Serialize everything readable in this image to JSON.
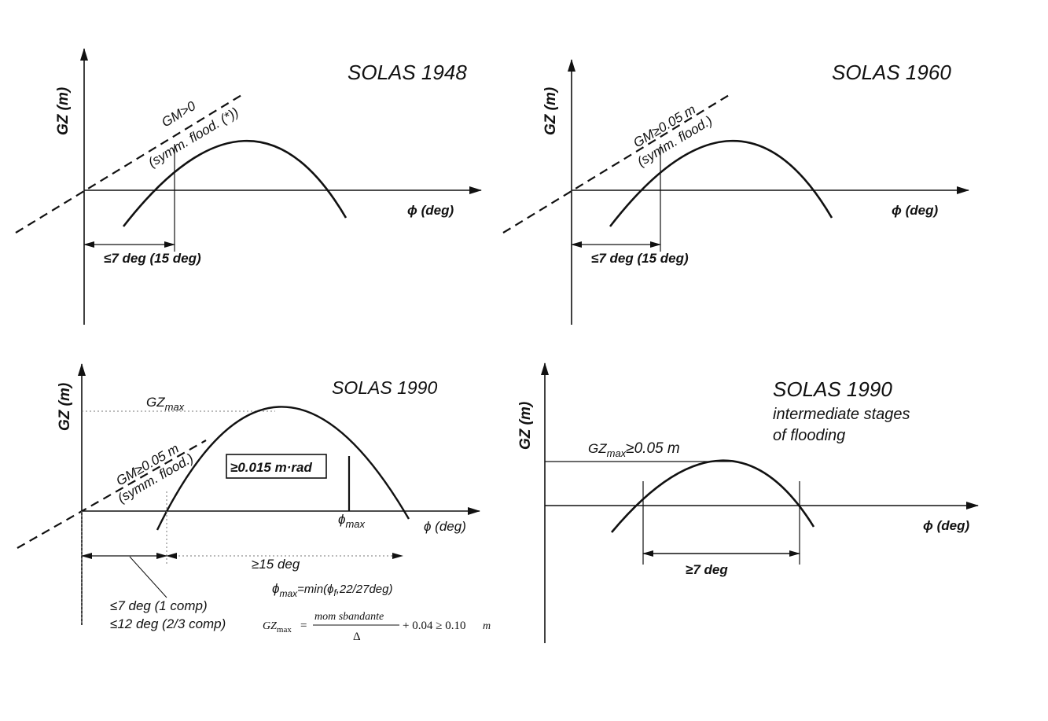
{
  "panels": {
    "p1948": {
      "title": "SOLAS 1948",
      "y_axis": "GZ (m)",
      "x_axis": "ϕ (deg)",
      "gm_label": "GM>0",
      "gm_note": "(symm. flood. (*))",
      "angle_label": "≤7 deg (15 deg)"
    },
    "p1960": {
      "title": "SOLAS 1960",
      "y_axis": "GZ (m)",
      "x_axis": "ϕ (deg)",
      "gm_label": "GM≥0.05 m",
      "gm_note": "(symm. flood.)",
      "angle_label": "≤7 deg (15 deg)"
    },
    "p1990": {
      "title": "SOLAS 1990",
      "y_axis": "GZ (m)",
      "x_axis": "ϕ (deg)",
      "gzmax_main": "GZ",
      "gzmax_sub": "max",
      "gm_label": "GM≥0.05 m",
      "gm_note": "(symm. flood.)",
      "area_label": "≥0.015 m·rad",
      "phimax_main": "ϕ",
      "phimax_sub": "max",
      "range_label": "≥15 deg",
      "formula_phi_main": "ϕ",
      "formula_phi_sub": "max",
      "formula_phi_mid": "=min(ϕ",
      "formula_phi_f": "f",
      "formula_phi_end": ",22/27deg)",
      "angle_label_1": "≤7 deg (1 comp)",
      "angle_label_2": "≤12 deg (2/3 comp)",
      "formula_gz_main": "GZ",
      "formula_gz_sub": "max",
      "formula_gz_eq": "=",
      "formula_gz_num": "mom sbandante",
      "formula_gz_den": "Δ",
      "formula_gz_tail": "+ 0.04 ≥ 0.10",
      "formula_gz_unit": "m"
    },
    "p1990i": {
      "title": "SOLAS 1990",
      "subtitle_1": "intermediate stages",
      "subtitle_2": "of flooding",
      "y_axis": "GZ (m)",
      "x_axis": "ϕ (deg)",
      "gzmax_main": "GZ",
      "gzmax_sub": "max",
      "gzmax_tail": "≥0.05 m",
      "range_label": "≥7 deg"
    }
  }
}
